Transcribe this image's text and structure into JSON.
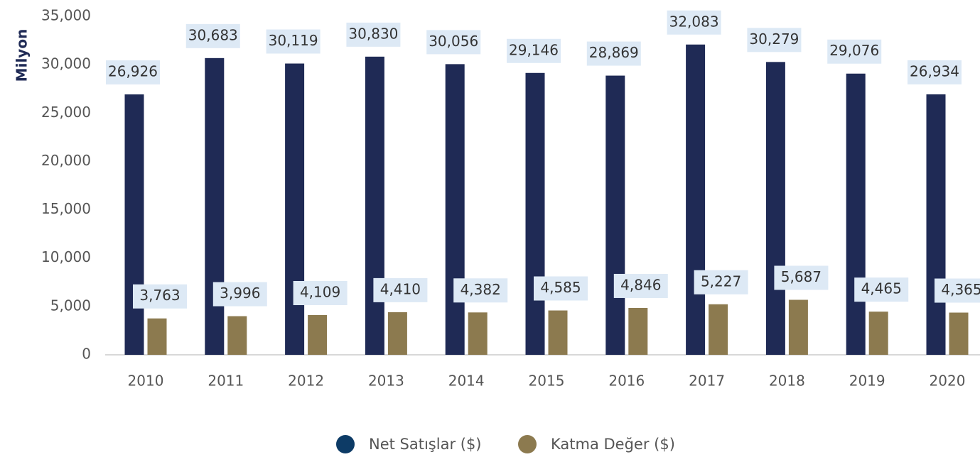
{
  "chart_data": {
    "type": "bar",
    "y_label": "Milyon",
    "categories": [
      "2010",
      "2011",
      "2012",
      "2013",
      "2014",
      "2015",
      "2016",
      "2017",
      "2018",
      "2019",
      "2020"
    ],
    "series": [
      {
        "name": "Net Satışlar ($)",
        "color": "#1f2a55",
        "values": [
          26926,
          30683,
          30119,
          30830,
          30056,
          29146,
          28869,
          32083,
          30279,
          29076,
          26934
        ],
        "value_labels": [
          "26,926",
          "30,683",
          "30,119",
          "30,830",
          "30,056",
          "29,146",
          "28,869",
          "32,083",
          "30,279",
          "29,076",
          "26,934"
        ]
      },
      {
        "name": "Katma Değer ($)",
        "color": "#8c7a4f",
        "values": [
          3763,
          3996,
          4109,
          4410,
          4382,
          4585,
          4846,
          5227,
          5687,
          4465,
          4365
        ],
        "value_labels": [
          "3,763",
          "3,996",
          "4,109",
          "4,410",
          "4,382",
          "4,585",
          "4,846",
          "5,227",
          "5,687",
          "4,465",
          "4,365"
        ]
      }
    ],
    "ylim": [
      0,
      35000
    ],
    "yticks": [
      0,
      {
        "value": 5000,
        "label": "5,000"
      },
      {
        "value": 10000,
        "label": "10,000"
      },
      {
        "value": 15000,
        "label": "15,000"
      },
      {
        "value": 20000,
        "label": "20,000"
      },
      {
        "value": 25000,
        "label": "25,000"
      },
      {
        "value": 30000,
        "label": "30,000"
      },
      {
        "value": 35000,
        "label": "35,000"
      }
    ],
    "legend": "bottom"
  }
}
